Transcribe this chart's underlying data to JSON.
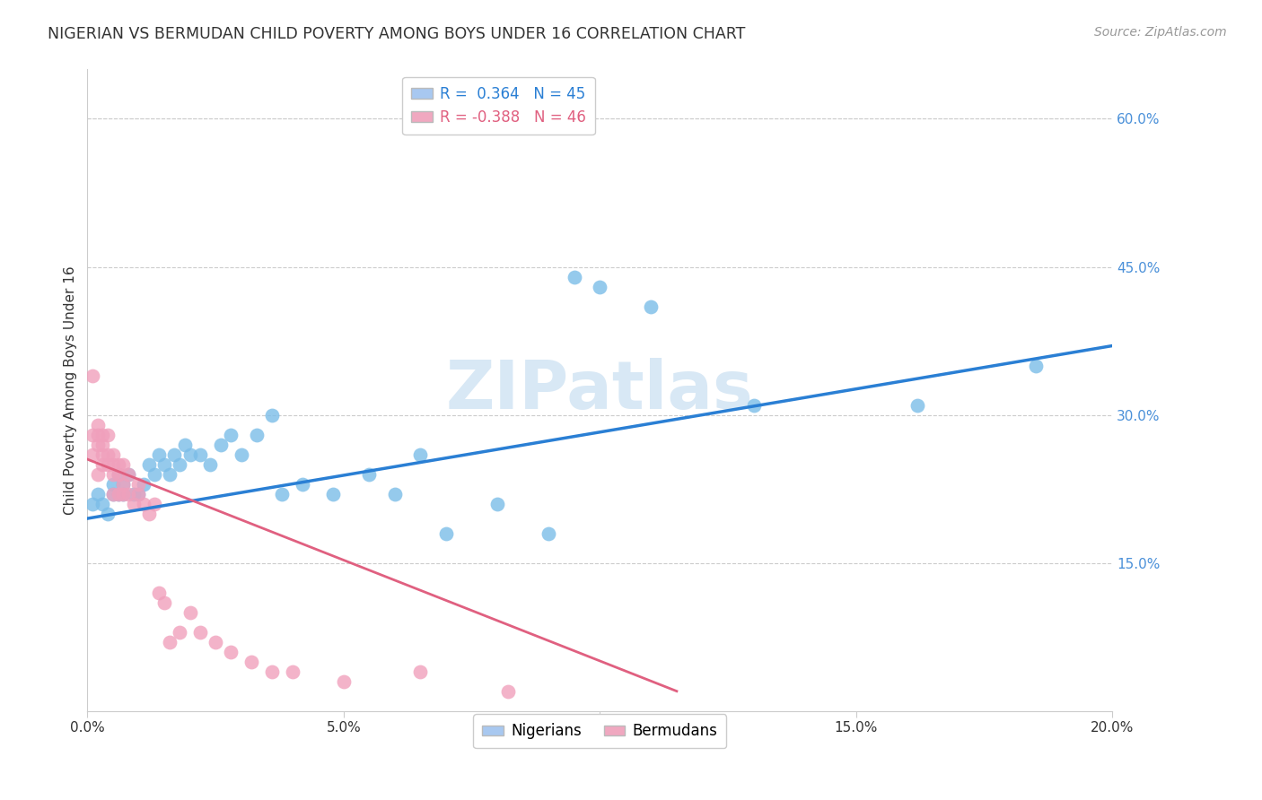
{
  "title": "NIGERIAN VS BERMUDAN CHILD POVERTY AMONG BOYS UNDER 16 CORRELATION CHART",
  "source": "Source: ZipAtlas.com",
  "ylabel": "Child Poverty Among Boys Under 16",
  "watermark": "ZIPatlas",
  "xlim": [
    0.0,
    0.2
  ],
  "ylim": [
    0.0,
    0.65
  ],
  "x_tick_vals": [
    0.0,
    0.05,
    0.1,
    0.15,
    0.2
  ],
  "x_tick_labels": [
    "0.0%",
    "5.0%",
    "10.0%",
    "15.0%",
    "20.0%"
  ],
  "y_tick_vals": [
    0.15,
    0.3,
    0.45,
    0.6
  ],
  "y_tick_labels": [
    "15.0%",
    "30.0%",
    "45.0%",
    "60.0%"
  ],
  "nigerians_color": "#7bbde8",
  "bermudans_color": "#f0a0bc",
  "blue_line_color": "#2a7fd4",
  "pink_line_color": "#e06080",
  "grid_color": "#cccccc",
  "background_color": "#ffffff",
  "title_color": "#333333",
  "right_tick_color": "#4a90d9",
  "watermark_color": "#d8e8f5",
  "nigerians": {
    "x": [
      0.001,
      0.002,
      0.003,
      0.004,
      0.005,
      0.005,
      0.006,
      0.006,
      0.007,
      0.007,
      0.008,
      0.009,
      0.01,
      0.011,
      0.012,
      0.013,
      0.014,
      0.015,
      0.016,
      0.017,
      0.018,
      0.019,
      0.02,
      0.022,
      0.024,
      0.026,
      0.028,
      0.03,
      0.033,
      0.036,
      0.038,
      0.042,
      0.048,
      0.055,
      0.06,
      0.065,
      0.07,
      0.08,
      0.09,
      0.095,
      0.1,
      0.11,
      0.13,
      0.162,
      0.185
    ],
    "y": [
      0.21,
      0.22,
      0.21,
      0.2,
      0.22,
      0.23,
      0.22,
      0.24,
      0.22,
      0.23,
      0.24,
      0.22,
      0.22,
      0.23,
      0.25,
      0.24,
      0.26,
      0.25,
      0.24,
      0.26,
      0.25,
      0.27,
      0.26,
      0.26,
      0.25,
      0.27,
      0.28,
      0.26,
      0.28,
      0.3,
      0.22,
      0.23,
      0.22,
      0.24,
      0.22,
      0.26,
      0.18,
      0.21,
      0.18,
      0.44,
      0.43,
      0.41,
      0.31,
      0.31,
      0.35
    ]
  },
  "bermudans": {
    "x": [
      0.001,
      0.001,
      0.001,
      0.002,
      0.002,
      0.002,
      0.002,
      0.003,
      0.003,
      0.003,
      0.003,
      0.004,
      0.004,
      0.004,
      0.005,
      0.005,
      0.005,
      0.005,
      0.006,
      0.006,
      0.006,
      0.007,
      0.007,
      0.007,
      0.008,
      0.008,
      0.009,
      0.01,
      0.01,
      0.011,
      0.012,
      0.013,
      0.014,
      0.015,
      0.016,
      0.018,
      0.02,
      0.022,
      0.025,
      0.028,
      0.032,
      0.036,
      0.04,
      0.05,
      0.065,
      0.082
    ],
    "y": [
      0.34,
      0.28,
      0.26,
      0.27,
      0.28,
      0.29,
      0.24,
      0.27,
      0.26,
      0.28,
      0.25,
      0.26,
      0.25,
      0.28,
      0.24,
      0.26,
      0.25,
      0.22,
      0.24,
      0.25,
      0.22,
      0.25,
      0.23,
      0.22,
      0.22,
      0.24,
      0.21,
      0.23,
      0.22,
      0.21,
      0.2,
      0.21,
      0.12,
      0.11,
      0.07,
      0.08,
      0.1,
      0.08,
      0.07,
      0.06,
      0.05,
      0.04,
      0.04,
      0.03,
      0.04,
      0.02
    ]
  },
  "blue_line": {
    "x0": 0.0,
    "y0": 0.195,
    "x1": 0.2,
    "y1": 0.37
  },
  "pink_line": {
    "x0": 0.0,
    "y0": 0.255,
    "x1": 0.115,
    "y1": 0.02
  },
  "legend1_label1": "R =  0.364   N = 45",
  "legend1_label2": "R = -0.388   N = 46",
  "legend1_color1": "#a8c8f0",
  "legend1_color2": "#f0a8c0",
  "legend1_text_color1": "#2a7fd4",
  "legend1_text_color2": "#e06080",
  "legend2_label1": "Nigerians",
  "legend2_label2": "Bermudans"
}
